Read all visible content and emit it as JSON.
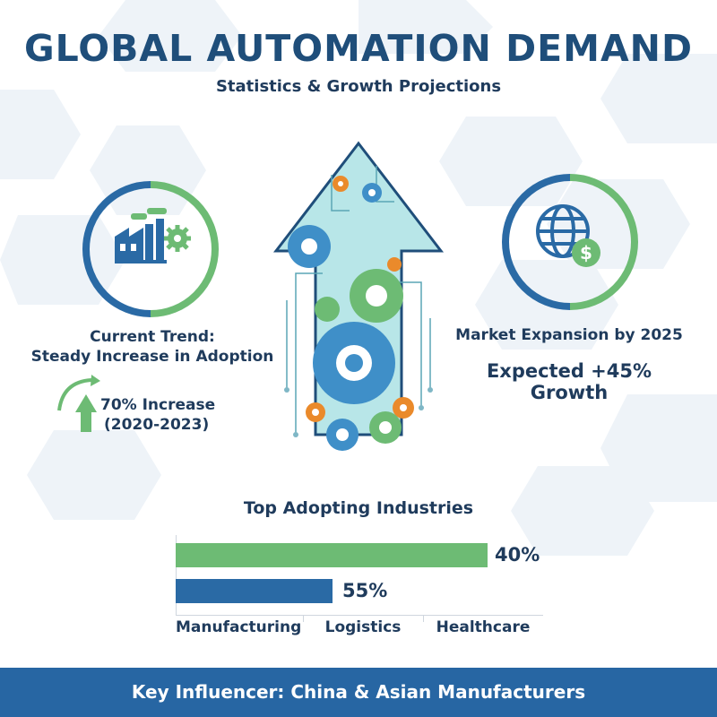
{
  "title": "GLOBAL AUTOMATION DEMAND",
  "subtitle": "Statistics & Growth Projections",
  "left_panel": {
    "icon": "factory-gear-icon",
    "trend_title": "Current Trend:",
    "trend_text": "Steady Increase in Adoption",
    "increase_icon": "up-arrow-icon",
    "increase_value": "70% Increase",
    "increase_period": "(2020-2023)"
  },
  "right_panel": {
    "icon": "globe-dollar-icon",
    "expansion_title": "Market Expansion by 2025",
    "growth_text": "Expected +45% Growth"
  },
  "center_graphic": {
    "icon": "gear-arrow-icon"
  },
  "industries": {
    "heading": "Top Adopting Industries",
    "bars": [
      {
        "label": "40%",
        "value": 40,
        "color": "#6dbb74"
      },
      {
        "label": "55%",
        "value": 55,
        "color": "#2a6aa5"
      }
    ],
    "categories": [
      "Manufacturing",
      "Logistics",
      "Healthcare"
    ]
  },
  "footer": "Key Influencer: China & Asian Manufacturers",
  "colors": {
    "navy": "#1f4e7a",
    "blue": "#2a6aa5",
    "green": "#6dbb74",
    "orange": "#ea8a2b",
    "teal": "#8fd3d8"
  }
}
